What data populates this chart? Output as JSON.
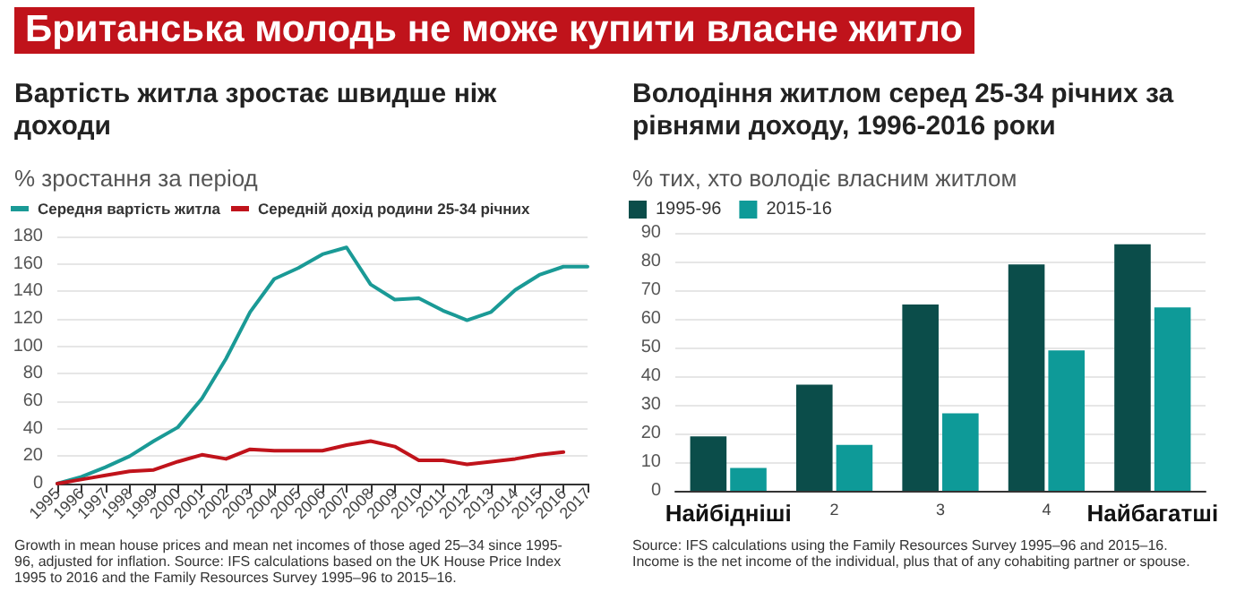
{
  "chart_data": [
    {
      "type": "line",
      "title": "Британська молодь не може купити власне житло",
      "subtitle": "Вартість житла зростає швидше ніж доходи",
      "ylabel": "% зростання за період",
      "categories": [
        "1995",
        "1996",
        "1997",
        "1998",
        "1999",
        "2000",
        "2001",
        "2002",
        "2003",
        "2004",
        "2005",
        "2006",
        "2007",
        "2008",
        "2009",
        "2010",
        "2011",
        "2012",
        "2013",
        "2014",
        "2015",
        "2016",
        "2017"
      ],
      "series": [
        {
          "name": "Середня вартість житла",
          "color": "#1a9a96",
          "values": [
            0,
            5,
            12,
            20,
            31,
            41,
            62,
            91,
            125,
            149,
            157,
            167,
            172,
            145,
            134,
            135,
            126,
            119,
            125,
            141,
            152,
            158,
            158
          ]
        },
        {
          "name": "Середній дохід родини 25-34 річних",
          "color": "#c0131b",
          "values": [
            0,
            3,
            6,
            9,
            10,
            16,
            21,
            18,
            25,
            24,
            24,
            24,
            28,
            31,
            27,
            17,
            17,
            14,
            16,
            18,
            21,
            23,
            null
          ]
        }
      ],
      "ylim": [
        0,
        180
      ],
      "yticks": [
        0,
        20,
        40,
        60,
        80,
        100,
        120,
        140,
        160,
        180
      ],
      "grid": "y",
      "legend": "top left",
      "marker": "none",
      "line_style": "solid",
      "annotations": [
        "Growth in mean house prices and mean net incomes of those aged 25–34 since 1995-96, adjusted for inflation. Source: IFS calculations based on the UK House Price Index 1995 to 2016 and the Family Resources Survey 1995–96 to 2015–16."
      ]
    },
    {
      "type": "bar",
      "title": "Володіння житлом серед 25-34 річних за рівнями доходу, 1996-2016 роки",
      "ylabel": "% тих, хто володіє власним житлом",
      "categories": [
        "Найбідніші",
        "2",
        "3",
        "4",
        "Найбагатші"
      ],
      "series": [
        {
          "name": "1995-96",
          "color": "#0b4d4a",
          "values": [
            19,
            37,
            65,
            79,
            86
          ]
        },
        {
          "name": "2015-16",
          "color": "#0e9a98",
          "values": [
            8,
            16,
            27,
            49,
            64
          ]
        }
      ],
      "ylim": [
        0,
        90
      ],
      "yticks": [
        0,
        10,
        20,
        30,
        40,
        50,
        60,
        70,
        80,
        90
      ],
      "grid": "y",
      "legend": "top left",
      "annotations": [
        "Source: IFS calculations using the Family Resources Survey 1995–96 and 2015–16. Income is the net income of the individual, plus that of any cohabiting partner or spouse."
      ]
    }
  ]
}
